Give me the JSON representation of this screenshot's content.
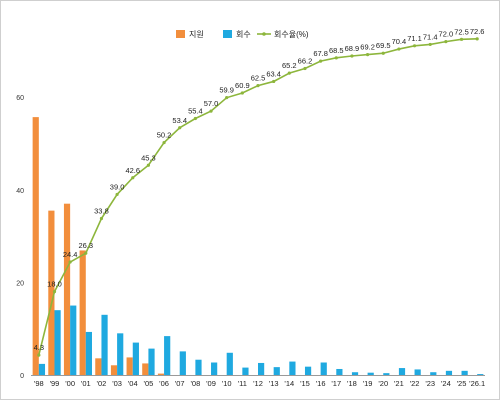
{
  "chart_data": {
    "type": "bar",
    "categories": [
      "'98",
      "'99",
      "'00",
      "'01",
      "'02",
      "'03",
      "'04",
      "'05",
      "'06",
      "'07",
      "'08",
      "'09",
      "'10",
      "'11",
      "'12",
      "'13",
      "'14",
      "'15",
      "'16",
      "'17",
      "'18",
      "'19",
      "'20",
      "'21",
      "'22",
      "'23",
      "'24",
      "'25",
      "'26.1"
    ],
    "yticks": [
      0,
      20,
      40,
      60
    ],
    "ylim": [
      0,
      80
    ],
    "grid": false,
    "legend_position": "top",
    "series": [
      {
        "name": "지원",
        "kind": "bar",
        "color": "#F28E3C",
        "values": [
          55.7,
          35.5,
          37.0,
          26.9,
          3.6,
          2.1,
          3.8,
          2.5,
          0.3,
          0,
          0,
          0,
          0,
          0,
          0,
          0,
          0,
          0,
          0,
          0,
          0,
          0,
          0,
          0,
          0,
          0,
          0,
          0,
          0
        ]
      },
      {
        "name": "회수",
        "kind": "bar",
        "color": "#1FA9E0",
        "values": [
          2.4,
          14.0,
          15.0,
          9.3,
          13.0,
          9.0,
          7.0,
          5.7,
          8.4,
          5.1,
          3.3,
          2.7,
          4.8,
          1.6,
          2.6,
          1.7,
          2.9,
          1.8,
          2.7,
          1.3,
          0.6,
          0.5,
          0.4,
          1.5,
          1.2,
          0.6,
          0.9,
          0.9,
          0.2
        ]
      },
      {
        "name": "회수율(%)",
        "kind": "line",
        "color": "#8DB63C",
        "values": [
          4.3,
          18.0,
          24.4,
          26.3,
          33.8,
          39.0,
          42.6,
          45.3,
          50.2,
          53.4,
          55.4,
          57.0,
          59.9,
          60.9,
          62.5,
          63.4,
          65.2,
          66.2,
          67.8,
          68.5,
          68.9,
          69.2,
          69.5,
          70.4,
          71.1,
          71.4,
          72.0,
          72.5,
          72.6
        ],
        "labels": [
          "4.3",
          "18.0",
          "24.4",
          "26.3",
          "33.8",
          "39.0",
          "42.6",
          "45.3",
          "50.2",
          "53.4",
          "55.4",
          "57.0",
          "59.9",
          "60.9",
          "62.5",
          "63.4",
          "65.2",
          "66.2",
          "67.8",
          "68.5",
          "68.9",
          "69.2",
          "69.5",
          "70.4",
          "71.1",
          "71.4",
          "72.0",
          "72.5",
          "72.6"
        ]
      }
    ]
  }
}
